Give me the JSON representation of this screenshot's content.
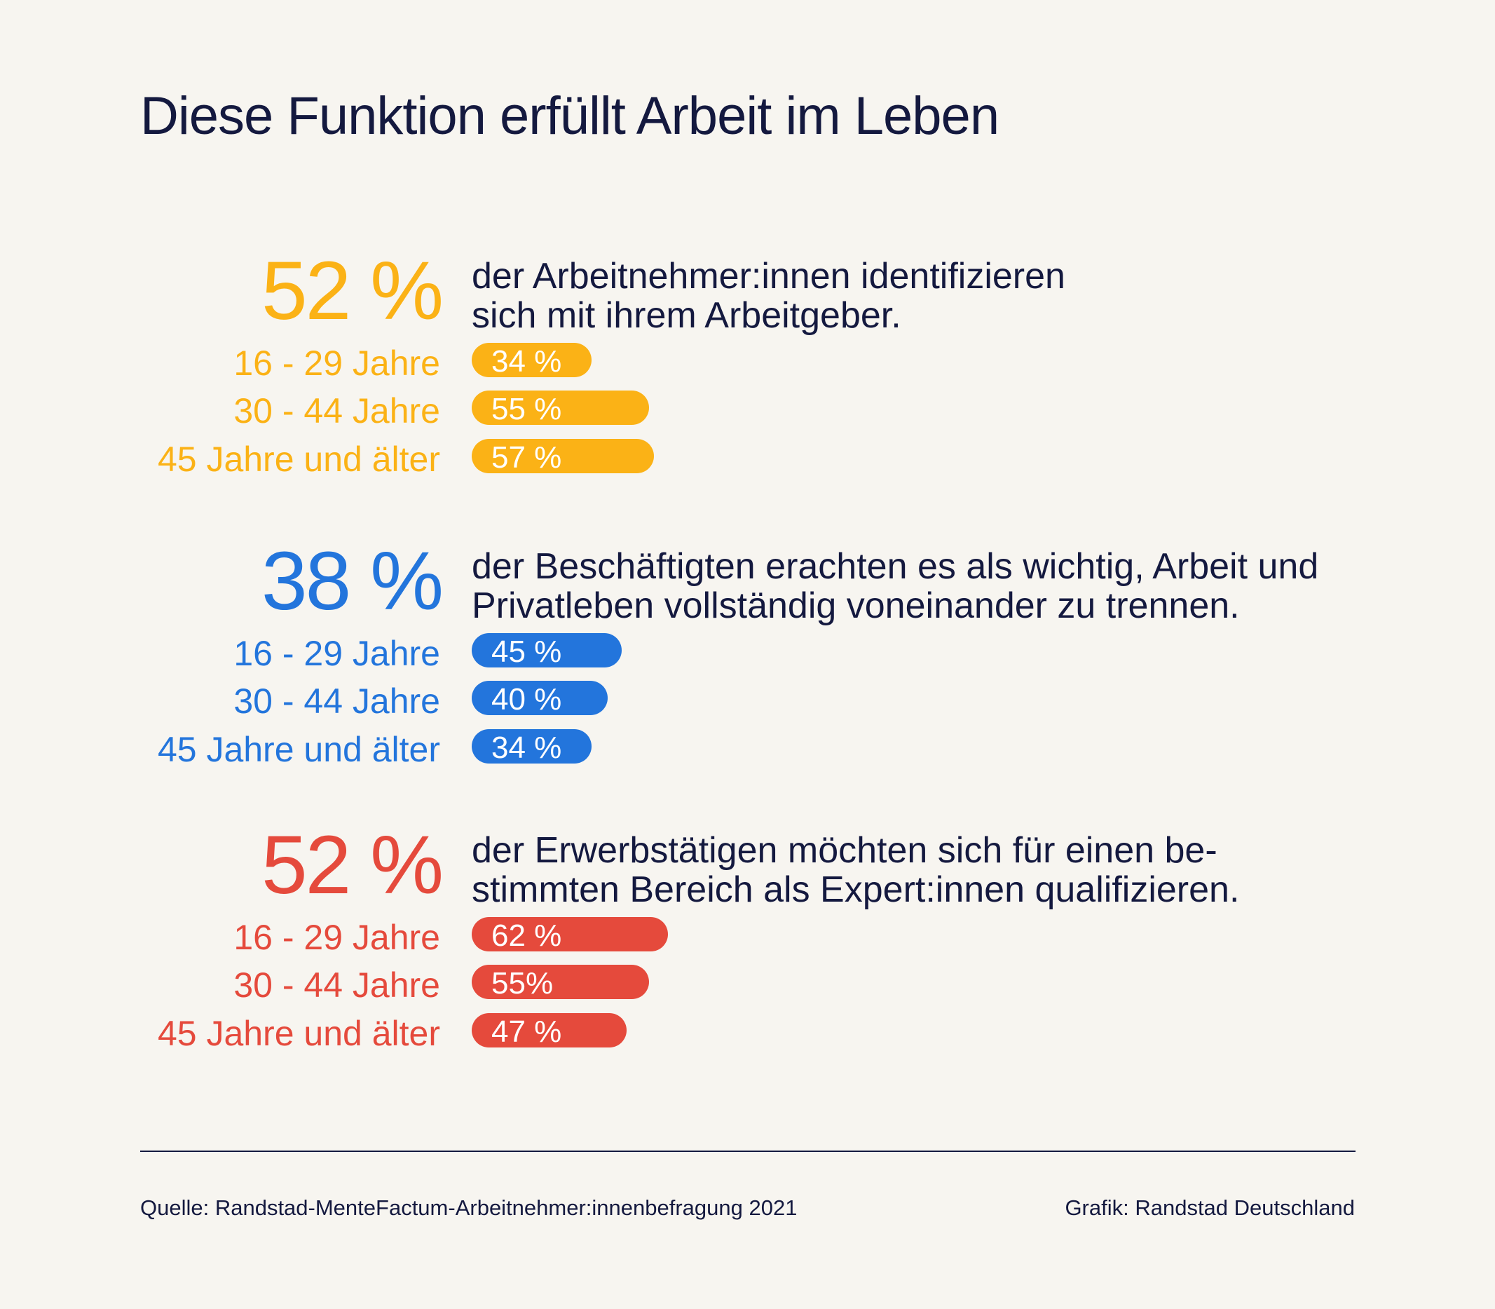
{
  "title": "Diese Funktion erfüllt Arbeit im Leben",
  "chart_data": {
    "type": "bar",
    "title": "Diese Funktion erfüllt Arbeit im Leben",
    "categories": [
      "16 - 29 Jahre",
      "30 - 44 Jahre",
      "45 Jahre und älter"
    ],
    "sections": [
      {
        "big_value": "52 %",
        "color": "#FBB216",
        "headline_lines": [
          "der Arbeitnehmer:innen identifizieren",
          "sich mit ihrem Arbeitgeber."
        ],
        "values": [
          34,
          55,
          57
        ],
        "value_labels": [
          "34 %",
          "55 %",
          "57 %"
        ]
      },
      {
        "big_value": "38 %",
        "color": "#2375DC",
        "headline_lines": [
          "der Beschäftigten erachten es als wichtig, Arbeit und",
          "Privatleben vollständig voneinander zu trennen."
        ],
        "values": [
          45,
          40,
          34
        ],
        "value_labels": [
          "45 %",
          "40 %",
          "34 %"
        ]
      },
      {
        "big_value": "52 %",
        "color": "#E54A3C",
        "headline_lines": [
          "der Erwerbstätigen möchten sich für einen be-",
          "stimmten Bereich als Expert:innen qualifizieren."
        ],
        "values": [
          62,
          55,
          47
        ],
        "value_labels": [
          "62 %",
          "55%",
          "47 %"
        ]
      }
    ]
  },
  "footer": {
    "source": "Quelle: Randstad-MenteFactum-Arbeitnehmer:innenbefragung 2021",
    "credit": "Grafik: Randstad Deutschland"
  }
}
